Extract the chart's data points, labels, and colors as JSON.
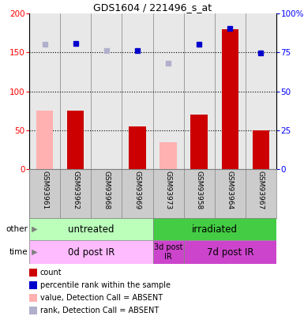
{
  "title": "GDS1604 / 221496_s_at",
  "samples": [
    "GSM93961",
    "GSM93962",
    "GSM93968",
    "GSM93969",
    "GSM93973",
    "GSM93958",
    "GSM93964",
    "GSM93967"
  ],
  "count_values": [
    75,
    75,
    0,
    55,
    35,
    70,
    180,
    50
  ],
  "count_absent": [
    true,
    false,
    true,
    false,
    true,
    false,
    false,
    false
  ],
  "rank_values": [
    160,
    161,
    152,
    152,
    136,
    160,
    181,
    149
  ],
  "rank_absent": [
    true,
    false,
    true,
    false,
    true,
    false,
    false,
    false
  ],
  "color_count": "#cc0000",
  "color_count_absent": "#ffb0b0",
  "color_rank": "#0000cc",
  "color_rank_absent": "#b0b0cc",
  "other_row": [
    {
      "label": "untreated",
      "start": 0,
      "end": 4,
      "color": "#bbffbb"
    },
    {
      "label": "irradiated",
      "start": 4,
      "end": 8,
      "color": "#44cc44"
    }
  ],
  "time_row": [
    {
      "label": "0d post IR",
      "start": 0,
      "end": 4,
      "color": "#ffbbff"
    },
    {
      "label": "3d post\nIR",
      "start": 4,
      "end": 5,
      "color": "#cc44cc"
    },
    {
      "label": "7d post IR",
      "start": 5,
      "end": 8,
      "color": "#cc44cc"
    }
  ],
  "legend_items": [
    {
      "color": "#cc0000",
      "label": "count"
    },
    {
      "color": "#0000cc",
      "label": "percentile rank within the sample"
    },
    {
      "color": "#ffb0b0",
      "label": "value, Detection Call = ABSENT"
    },
    {
      "color": "#b0b0cc",
      "label": "rank, Detection Call = ABSENT"
    }
  ],
  "bg_color": "#e8e8e8",
  "sample_bg": "#cccccc"
}
